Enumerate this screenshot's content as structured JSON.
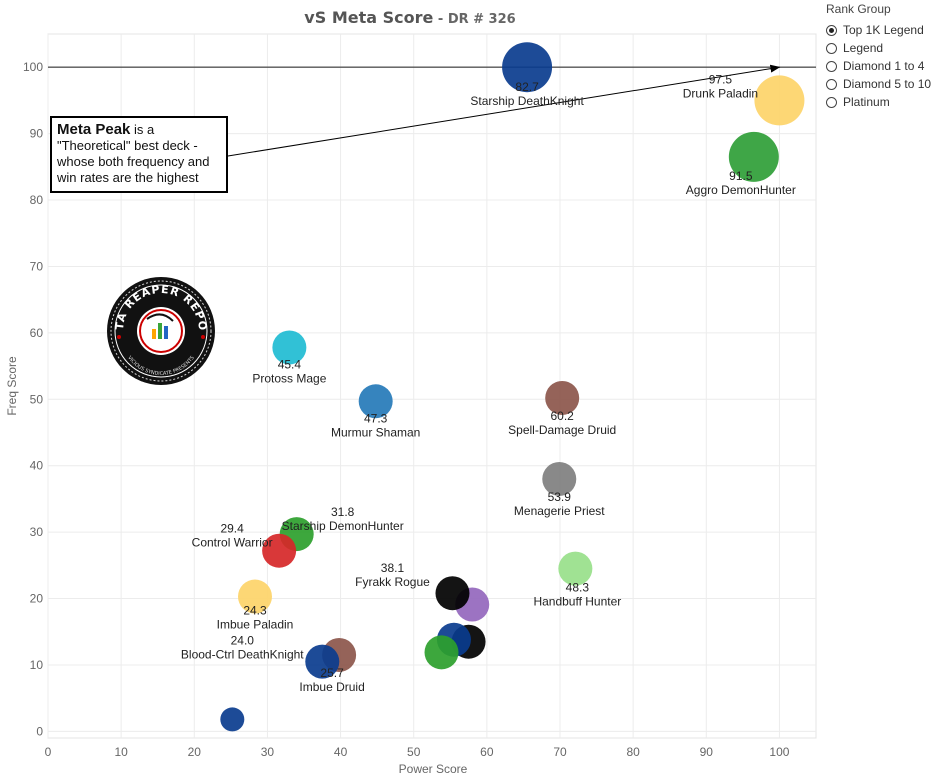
{
  "title": {
    "main": "vS Meta Score",
    "sep": " - ",
    "sub": "DR # 326"
  },
  "legend": {
    "title": "Rank Group",
    "items": [
      {
        "label": "Top 1K Legend",
        "selected": true
      },
      {
        "label": "Legend",
        "selected": false
      },
      {
        "label": "Diamond 1 to 4",
        "selected": false
      },
      {
        "label": "Diamond 5 to 10",
        "selected": false
      },
      {
        "label": "Platinum",
        "selected": false
      }
    ]
  },
  "callout": {
    "bold": "Meta Peak",
    "text": " is a \"Theoretical\" best deck - whose both frequency and win rates are the highest"
  },
  "logo": {
    "text": "DATA REAPER REPORT",
    "subtext": "VICIOUS SYNDICATE PRESENTS"
  },
  "chart_data": {
    "type": "scatter",
    "xlabel": "Power Score",
    "ylabel": "Freq Score",
    "xlim": [
      0,
      105
    ],
    "ylim": [
      -1,
      105
    ],
    "xticks": [
      0,
      10,
      20,
      30,
      40,
      50,
      60,
      70,
      80,
      90,
      100
    ],
    "yticks": [
      0,
      10,
      20,
      30,
      40,
      50,
      60,
      70,
      80,
      90,
      100
    ],
    "grid": true,
    "reference_line": {
      "y": 100
    },
    "meta_peak": {
      "x": 100,
      "y": 100
    },
    "points": [
      {
        "x": 65.5,
        "y": 100,
        "color": "#0a3c8e",
        "name": "Starship DeathKnight",
        "score": "82.7"
      },
      {
        "x": 100,
        "y": 95,
        "color": "#fdd469",
        "name": "Drunk Paladin",
        "score": "97.5"
      },
      {
        "x": 96.5,
        "y": 86.5,
        "color": "#2f9e37",
        "name": "Aggro DemonHunter",
        "score": "91.5"
      },
      {
        "x": 33,
        "y": 57.8,
        "color": "#1fbcd2",
        "name": "Protoss Mage",
        "score": "45.4"
      },
      {
        "x": 44.8,
        "y": 49.7,
        "color": "#2579b8",
        "name": "Murmur Shaman",
        "score": "47.3"
      },
      {
        "x": 70.3,
        "y": 50.2,
        "color": "#8c564b",
        "name": "Spell-Damage Druid",
        "score": "60.2"
      },
      {
        "x": 69.9,
        "y": 38,
        "color": "#7f7f7f",
        "name": "Menagerie Priest",
        "score": "53.9"
      },
      {
        "x": 34,
        "y": 29.7,
        "color": "#2ca02c",
        "name": "Starship DemonHunter",
        "score": "31.8"
      },
      {
        "x": 31.6,
        "y": 27.2,
        "color": "#d62728",
        "name": "Control Warrior",
        "score": "29.4"
      },
      {
        "x": 72.1,
        "y": 24.5,
        "color": "#98df8a",
        "name": "Handbuff Hunter",
        "score": "48.3"
      },
      {
        "x": 28.3,
        "y": 20.3,
        "color": "#fdd469",
        "name": "Imbue Paladin",
        "score": "24.3"
      },
      {
        "x": 58,
        "y": 19.1,
        "color": "#9467bd",
        "name": "",
        "score": ""
      },
      {
        "x": 55.3,
        "y": 20.8,
        "color": "#000000",
        "name": "Fyrakk Rogue",
        "score": "38.1"
      },
      {
        "x": 57.5,
        "y": 13.5,
        "color": "#000000",
        "name": "",
        "score": ""
      },
      {
        "x": 55.5,
        "y": 13.8,
        "color": "#0a3c8e",
        "name": "",
        "score": ""
      },
      {
        "x": 53.8,
        "y": 11.9,
        "color": "#2ca02c",
        "name": "",
        "score": ""
      },
      {
        "x": 39.8,
        "y": 11.5,
        "color": "#8c564b",
        "name": "Imbue Druid",
        "score": "25.7"
      },
      {
        "x": 37.5,
        "y": 10.5,
        "color": "#0a3c8e",
        "name": "Blood-Ctrl DeathKnight",
        "score": "24.0"
      },
      {
        "x": 25.2,
        "y": 1.8,
        "color": "#0a3c8e",
        "name": "",
        "score": ""
      }
    ]
  }
}
